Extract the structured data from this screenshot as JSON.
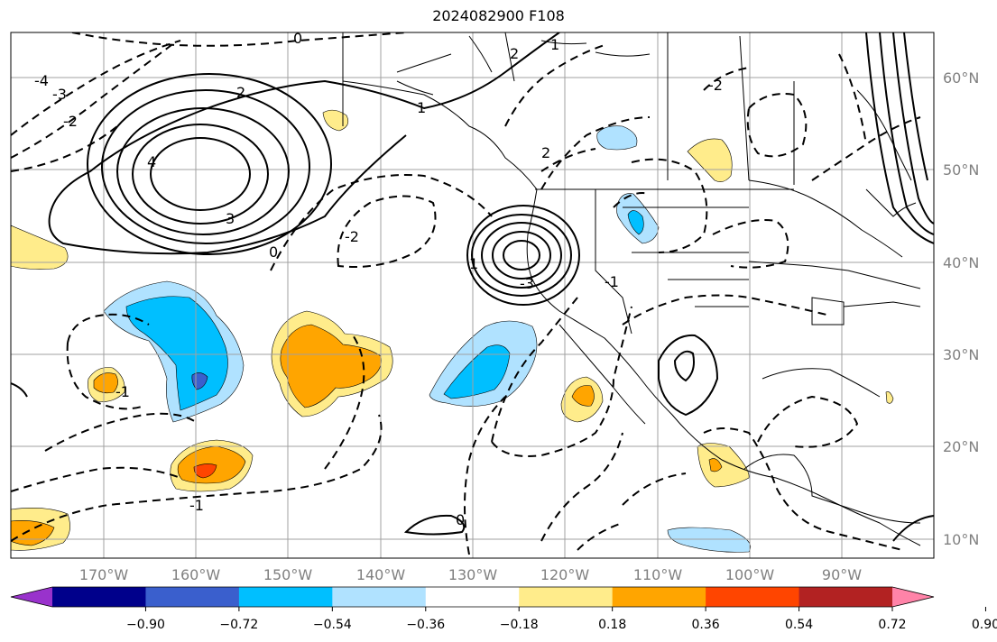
{
  "title": "2024082900 F108",
  "map": {
    "lon_ticks": [
      "170°W",
      "160°W",
      "150°W",
      "140°W",
      "130°W",
      "120°W",
      "110°W",
      "100°W",
      "90°W"
    ],
    "lat_ticks": [
      "60°N",
      "50°N",
      "40°N",
      "30°N",
      "20°N",
      "10°N"
    ],
    "contour_labels": [
      "0",
      "2",
      "-2",
      "1",
      "-1",
      "3",
      "-3",
      "4",
      "-4",
      "0",
      "2",
      "-2",
      "1",
      "-1",
      "0",
      "-2",
      "2",
      "-1",
      "1",
      "-3"
    ],
    "grid": true
  },
  "colorbar": {
    "colors": [
      "#9932cc",
      "#00008b",
      "#3a5fcd",
      "#00bfff",
      "#b0e2ff",
      "#ffffff",
      "#ffec8b",
      "#ffa500",
      "#ff4500",
      "#b22222",
      "#ff83a8"
    ],
    "labels": [
      "−0.90",
      "−0.72",
      "−0.54",
      "−0.36",
      "−0.18",
      "0.18",
      "0.36",
      "0.54",
      "0.72",
      "0.90"
    ]
  }
}
